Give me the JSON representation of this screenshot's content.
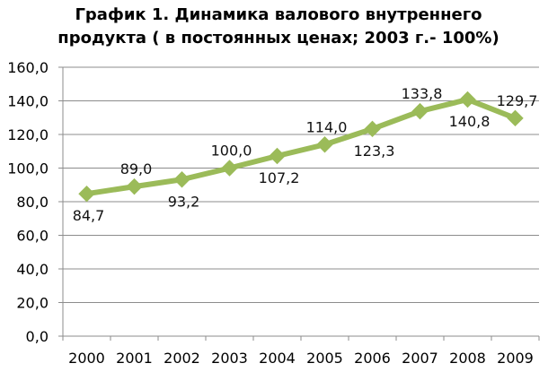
{
  "chart_data": {
    "type": "line",
    "title_lines": [
      "График 1. Динамика валового внутреннего",
      "продукта ( в постоянных ценах; 2003 г.- 100%)"
    ],
    "categories": [
      "2000",
      "2001",
      "2002",
      "2003",
      "2004",
      "2005",
      "2006",
      "2007",
      "2008",
      "2009"
    ],
    "series": [
      {
        "values": [
          84.7,
          89.0,
          93.2,
          100.0,
          107.2,
          114.0,
          123.3,
          133.8,
          140.8,
          129.7
        ],
        "labels": [
          "84,7",
          "89,0",
          "93,2",
          "100,0",
          "107,2",
          "114,0",
          "123,3",
          "133,8",
          "140,8",
          "129,7"
        ],
        "label_side": [
          "below",
          "above",
          "below",
          "above",
          "below",
          "above",
          "below",
          "above",
          "below",
          "above"
        ],
        "color": "#9bbb59",
        "marker": "diamond"
      }
    ],
    "yticks": [
      "0,0",
      "20,0",
      "40,0",
      "60,0",
      "80,0",
      "100,0",
      "120,0",
      "140,0",
      "160,0"
    ],
    "ylim": [
      0,
      160
    ],
    "ystep": 20,
    "grid": true,
    "legend": "none"
  }
}
